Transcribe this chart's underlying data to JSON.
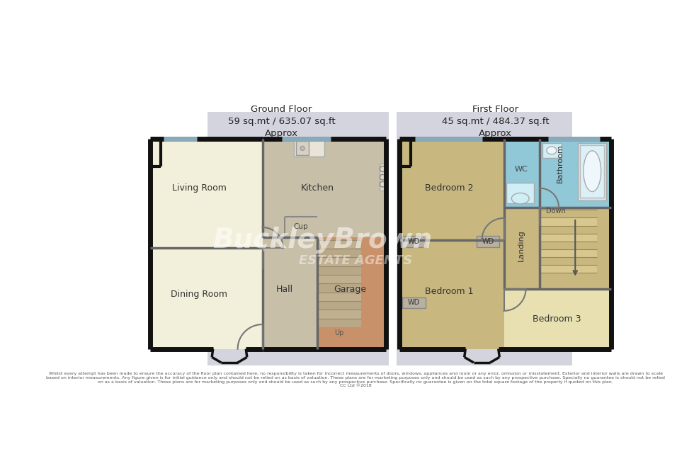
{
  "bg_color": "#ffffff",
  "plan_bg": "#d4d4de",
  "wall_color": "#111111",
  "living_color": "#f2efda",
  "kitchen_hall_color": "#c8bfa8",
  "garage_color": "#c8916a",
  "bedroom_color": "#c8b880",
  "bedroom3_color": "#e8e0b0",
  "landing_color": "#c8b880",
  "bathroom_color": "#90c8d8",
  "wc_color": "#90c8d8",
  "title_gf": "Ground Floor\n59 sq.mt / 635.07 sq.ft\nApprox",
  "title_ff": "First Floor\n45 sq.mt / 484.37 sq.ft\nApprox",
  "disclaimer": "Whilst every attempt has been made to ensure the accuracy of the floor plan contained here, no responsibility is taken for incorrect measurements of doors, windows, appliances and room or any error, omission or misstatement. Exterior and interior walls are drawn to scale\nbased on interior measurements. Any figure given is for initial guidance only and should not be relied on as basis of valuation. These plans are for marketing purposes only and should be used as such by any prospective purchase. Specially no guarantee is should not be relied\non as a basis of valuation. These plans are for marketing purposes only and should be used as such by any prospective purchase. Specifically no guarantee is given on the total square footage of the property if quoted on this plan.\nCC Ltd ©2018"
}
